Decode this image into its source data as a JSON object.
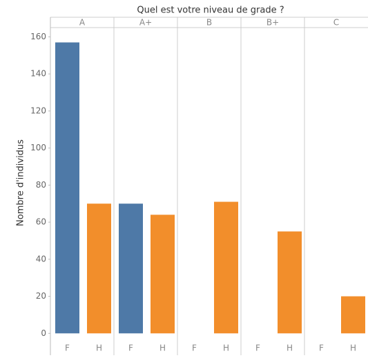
{
  "chart_data": {
    "type": "grouped-bar",
    "title": "Quel est votre niveau de grade ?",
    "y_label": "Nombre d'individus",
    "categories": [
      "A",
      "A+",
      "B",
      "B+",
      "C"
    ],
    "series": [
      {
        "name": "F",
        "color": "#4e79a7",
        "values": [
          157,
          70,
          0,
          0,
          0
        ]
      },
      {
        "name": "H",
        "color": "#f28e2b",
        "values": [
          70,
          64,
          71,
          55,
          20
        ]
      }
    ],
    "ylim": [
      -2.5,
      165
    ],
    "yticks": [
      0,
      20,
      40,
      60,
      80,
      100,
      120,
      140,
      160
    ]
  }
}
